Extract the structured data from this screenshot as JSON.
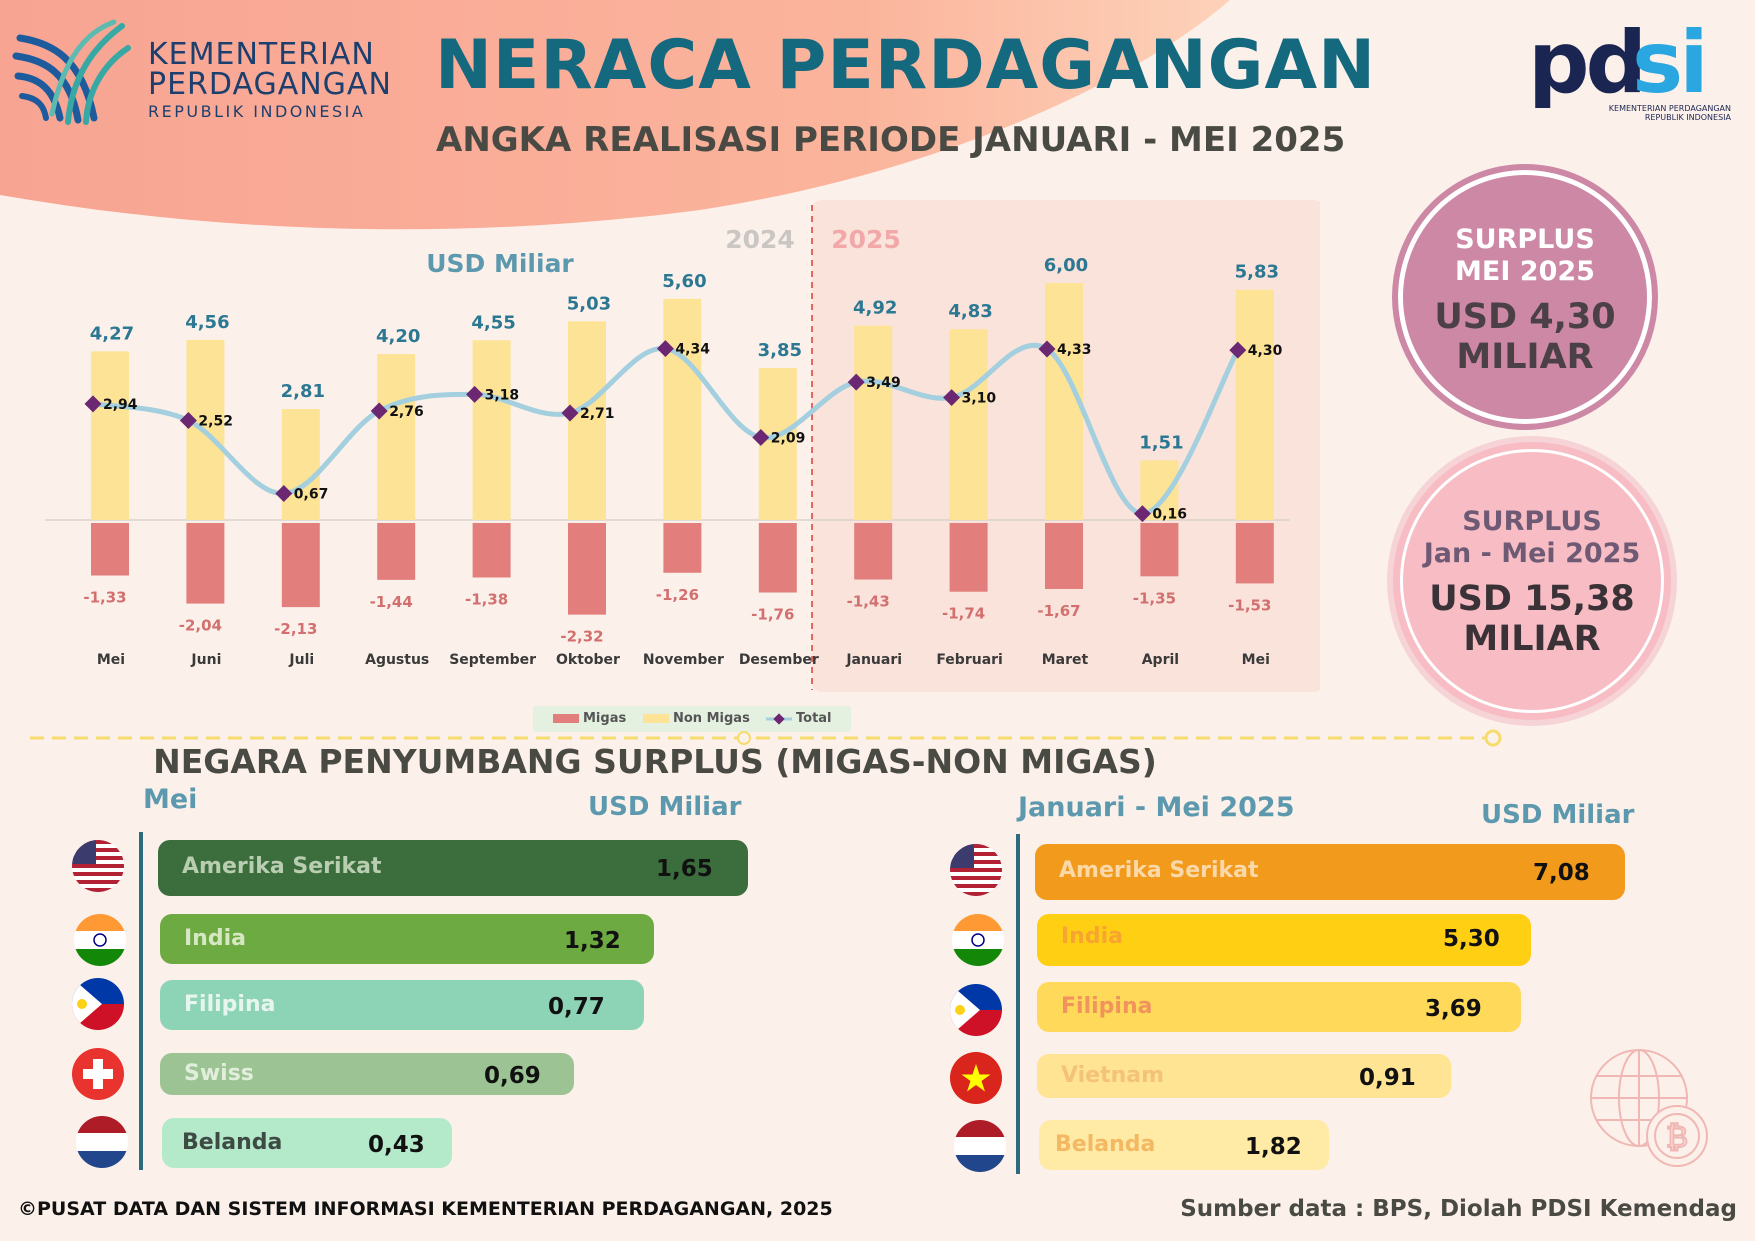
{
  "header": {
    "ministry_line1": "KEMENTERIAN",
    "ministry_line2": "PERDAGANGAN",
    "ministry_line3": "REPUBLIK INDONESIA",
    "title": "NERACA PERDAGANGAN",
    "subtitle": "ANGKA REALISASI PERIODE JANUARI - MEI 2025",
    "pdsi_logo_text": "pdsi",
    "pdsi_sub1": "KEMENTERIAN PERDAGANGAN",
    "pdsi_sub2": "REPUBLIK INDONESIA"
  },
  "chart_data": {
    "type": "bar",
    "ylabel": "USD Miliar",
    "period_labels": [
      "2024",
      "2025"
    ],
    "categories": [
      "Mei",
      "Juni",
      "Juli",
      "Agustus",
      "September",
      "Oktober",
      "November",
      "Desember",
      "Januari",
      "Februari",
      "Maret",
      "April",
      "Mei"
    ],
    "series": [
      {
        "name": "Migas",
        "type": "bar",
        "color": "#E27F7D",
        "values": [
          -1.33,
          -2.04,
          -2.13,
          -1.44,
          -1.38,
          -2.32,
          -1.26,
          -1.76,
          -1.43,
          -1.74,
          -1.67,
          -1.35,
          -1.53
        ],
        "labels": [
          "-1,33",
          "-2,04",
          "-2,13",
          "-1,44",
          "-1,38",
          "-2,32",
          "-1,26",
          "-1,76",
          "-1,43",
          "-1,74",
          "-1,67",
          "-1,35",
          "-1,53"
        ]
      },
      {
        "name": "Non Migas",
        "type": "bar",
        "color": "#FCE395",
        "values": [
          4.27,
          4.56,
          2.81,
          4.2,
          4.55,
          5.03,
          5.6,
          3.85,
          4.92,
          4.83,
          6.0,
          1.51,
          5.83
        ],
        "labels": [
          "4,27",
          "4,56",
          "2,81",
          "4,20",
          "4,55",
          "5,03",
          "5,60",
          "3,85",
          "4,92",
          "4,83",
          "6,00",
          "1,51",
          "5,83"
        ]
      },
      {
        "name": "Total",
        "type": "line",
        "color": "#A3CFDF",
        "marker_color": "#6C2772",
        "values": [
          2.94,
          2.52,
          0.67,
          2.76,
          3.18,
          2.71,
          4.34,
          2.09,
          3.49,
          3.1,
          4.33,
          0.16,
          4.3
        ],
        "labels": [
          "2,94",
          "2,52",
          "0,67",
          "2,76",
          "3,18",
          "2,71",
          "4,34",
          "2,09",
          "3,49",
          "3,10",
          "4,33",
          "0,16",
          "4,30"
        ]
      }
    ],
    "legend_position": "bottom"
  },
  "summary": {
    "mei_label1": "SURPLUS",
    "mei_label2": "MEI 2025",
    "mei_value1": "USD 4,30",
    "mei_value2": "MILIAR",
    "jan_label1": "SURPLUS",
    "jan_label2": "Jan - Mei 2025",
    "jan_value1": "USD 15,38",
    "jan_value2": "MILIAR"
  },
  "contributors": {
    "section_title": "NEGARA PENYUMBANG SURPLUS (MIGAS-NON MIGAS)",
    "left": {
      "title": "Mei",
      "unit": "USD Miliar",
      "items": [
        {
          "country": "Amerika Serikat",
          "value": "1,65"
        },
        {
          "country": "India",
          "value": "1,32"
        },
        {
          "country": "Filipina",
          "value": "0,77"
        },
        {
          "country": "Swiss",
          "value": "0,69"
        },
        {
          "country": "Belanda",
          "value": "0,43"
        }
      ]
    },
    "right": {
      "title": "Januari - Mei 2025",
      "unit": "USD Miliar",
      "items": [
        {
          "country": "Amerika Serikat",
          "value": "7,08"
        },
        {
          "country": "India",
          "value": "5,30"
        },
        {
          "country": "Filipina",
          "value": "3,69"
        },
        {
          "country": "Vietnam",
          "value": "0,91"
        },
        {
          "country": "Belanda",
          "value": "1,82"
        }
      ]
    }
  },
  "footer": {
    "copyright": "©PUSAT DATA DAN SISTEM INFORMASI KEMENTERIAN PERDAGANGAN, 2025",
    "source": "Sumber data : BPS, Diolah PDSI Kemendag"
  }
}
